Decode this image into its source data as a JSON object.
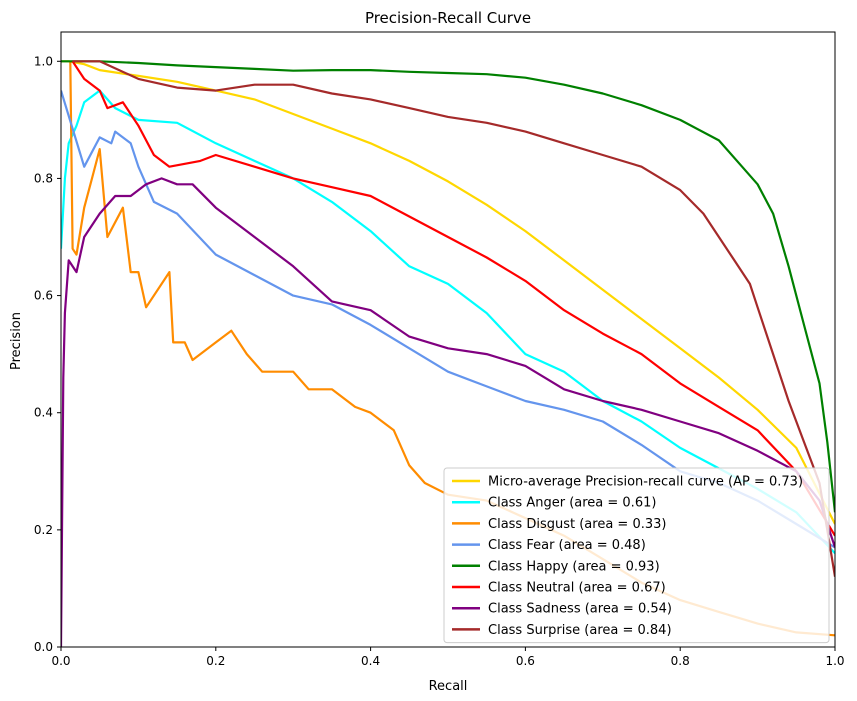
{
  "chart_data": {
    "type": "line",
    "title": "Precision-Recall Curve",
    "xlabel": "Recall",
    "ylabel": "Precision",
    "xlim": [
      0,
      1
    ],
    "ylim": [
      0,
      1.05
    ],
    "x_ticks": [
      "0.0",
      "0.2",
      "0.4",
      "0.6",
      "0.8",
      "1.0"
    ],
    "y_ticks": [
      "0.0",
      "0.2",
      "0.4",
      "0.6",
      "0.8",
      "1.0"
    ],
    "grid": false,
    "legend_position": "lower-right",
    "series": [
      {
        "name": "Micro-average Precision-recall curve (AP = 0.73)",
        "color": "#ffd700",
        "points": [
          [
            0,
            1.0
          ],
          [
            0.01,
            1.0
          ],
          [
            0.03,
            0.995
          ],
          [
            0.05,
            0.985
          ],
          [
            0.1,
            0.975
          ],
          [
            0.15,
            0.965
          ],
          [
            0.2,
            0.95
          ],
          [
            0.25,
            0.935
          ],
          [
            0.3,
            0.91
          ],
          [
            0.35,
            0.885
          ],
          [
            0.4,
            0.86
          ],
          [
            0.45,
            0.83
          ],
          [
            0.5,
            0.795
          ],
          [
            0.55,
            0.755
          ],
          [
            0.6,
            0.71
          ],
          [
            0.65,
            0.66
          ],
          [
            0.7,
            0.61
          ],
          [
            0.75,
            0.56
          ],
          [
            0.8,
            0.51
          ],
          [
            0.85,
            0.46
          ],
          [
            0.9,
            0.405
          ],
          [
            0.95,
            0.34
          ],
          [
            1.0,
            0.21
          ]
        ]
      },
      {
        "name": "Class Anger (area = 0.61)",
        "color": "#00ffff",
        "points": [
          [
            0,
            0.68
          ],
          [
            0.005,
            0.8
          ],
          [
            0.01,
            0.86
          ],
          [
            0.02,
            0.89
          ],
          [
            0.03,
            0.93
          ],
          [
            0.05,
            0.95
          ],
          [
            0.07,
            0.92
          ],
          [
            0.1,
            0.9
          ],
          [
            0.15,
            0.895
          ],
          [
            0.2,
            0.86
          ],
          [
            0.25,
            0.83
          ],
          [
            0.3,
            0.8
          ],
          [
            0.35,
            0.76
          ],
          [
            0.4,
            0.71
          ],
          [
            0.45,
            0.65
          ],
          [
            0.5,
            0.62
          ],
          [
            0.55,
            0.57
          ],
          [
            0.6,
            0.5
          ],
          [
            0.65,
            0.47
          ],
          [
            0.7,
            0.42
          ],
          [
            0.75,
            0.385
          ],
          [
            0.8,
            0.34
          ],
          [
            0.85,
            0.305
          ],
          [
            0.9,
            0.27
          ],
          [
            0.95,
            0.23
          ],
          [
            1.0,
            0.16
          ]
        ]
      },
      {
        "name": "Class Disgust (area = 0.33)",
        "color": "#ff8c00",
        "points": [
          [
            0.012,
            1.0
          ],
          [
            0.015,
            0.68
          ],
          [
            0.02,
            0.67
          ],
          [
            0.03,
            0.75
          ],
          [
            0.04,
            0.8
          ],
          [
            0.05,
            0.85
          ],
          [
            0.06,
            0.7
          ],
          [
            0.08,
            0.75
          ],
          [
            0.09,
            0.64
          ],
          [
            0.1,
            0.64
          ],
          [
            0.11,
            0.58
          ],
          [
            0.14,
            0.64
          ],
          [
            0.145,
            0.52
          ],
          [
            0.16,
            0.52
          ],
          [
            0.17,
            0.49
          ],
          [
            0.2,
            0.52
          ],
          [
            0.22,
            0.54
          ],
          [
            0.24,
            0.5
          ],
          [
            0.26,
            0.47
          ],
          [
            0.3,
            0.47
          ],
          [
            0.32,
            0.44
          ],
          [
            0.35,
            0.44
          ],
          [
            0.38,
            0.41
          ],
          [
            0.4,
            0.4
          ],
          [
            0.43,
            0.37
          ],
          [
            0.45,
            0.31
          ],
          [
            0.47,
            0.28
          ],
          [
            0.5,
            0.26
          ],
          [
            0.55,
            0.25
          ],
          [
            0.6,
            0.22
          ],
          [
            0.65,
            0.19
          ],
          [
            0.7,
            0.15
          ],
          [
            0.75,
            0.11
          ],
          [
            0.8,
            0.08
          ],
          [
            0.85,
            0.06
          ],
          [
            0.9,
            0.04
          ],
          [
            0.95,
            0.025
          ],
          [
            1.0,
            0.02
          ]
        ]
      },
      {
        "name": "Class Fear (area = 0.48)",
        "color": "#6495ed",
        "points": [
          [
            0,
            0.95
          ],
          [
            0.03,
            0.82
          ],
          [
            0.05,
            0.87
          ],
          [
            0.065,
            0.86
          ],
          [
            0.07,
            0.88
          ],
          [
            0.09,
            0.86
          ],
          [
            0.1,
            0.82
          ],
          [
            0.12,
            0.76
          ],
          [
            0.15,
            0.74
          ],
          [
            0.2,
            0.67
          ],
          [
            0.25,
            0.635
          ],
          [
            0.3,
            0.6
          ],
          [
            0.35,
            0.585
          ],
          [
            0.4,
            0.55
          ],
          [
            0.45,
            0.51
          ],
          [
            0.5,
            0.47
          ],
          [
            0.55,
            0.445
          ],
          [
            0.6,
            0.42
          ],
          [
            0.65,
            0.405
          ],
          [
            0.7,
            0.385
          ],
          [
            0.75,
            0.345
          ],
          [
            0.8,
            0.3
          ],
          [
            0.85,
            0.28
          ],
          [
            0.9,
            0.25
          ],
          [
            0.95,
            0.21
          ],
          [
            1.0,
            0.17
          ]
        ]
      },
      {
        "name": "Class Happy (area = 0.93)",
        "color": "#008000",
        "points": [
          [
            0,
            1.0
          ],
          [
            0.05,
            1.0
          ],
          [
            0.1,
            0.997
          ],
          [
            0.15,
            0.993
          ],
          [
            0.2,
            0.99
          ],
          [
            0.25,
            0.987
          ],
          [
            0.3,
            0.984
          ],
          [
            0.35,
            0.985
          ],
          [
            0.4,
            0.985
          ],
          [
            0.45,
            0.982
          ],
          [
            0.5,
            0.98
          ],
          [
            0.55,
            0.978
          ],
          [
            0.6,
            0.972
          ],
          [
            0.65,
            0.96
          ],
          [
            0.7,
            0.945
          ],
          [
            0.75,
            0.925
          ],
          [
            0.8,
            0.9
          ],
          [
            0.85,
            0.865
          ],
          [
            0.88,
            0.82
          ],
          [
            0.9,
            0.79
          ],
          [
            0.92,
            0.74
          ],
          [
            0.94,
            0.65
          ],
          [
            0.96,
            0.55
          ],
          [
            0.98,
            0.45
          ],
          [
            0.99,
            0.35
          ],
          [
            1.0,
            0.23
          ]
        ]
      },
      {
        "name": "Class Neutral (area = 0.67)",
        "color": "#ff0000",
        "points": [
          [
            0.015,
            1.0
          ],
          [
            0.03,
            0.97
          ],
          [
            0.05,
            0.95
          ],
          [
            0.06,
            0.92
          ],
          [
            0.08,
            0.93
          ],
          [
            0.1,
            0.89
          ],
          [
            0.12,
            0.84
          ],
          [
            0.14,
            0.82
          ],
          [
            0.18,
            0.83
          ],
          [
            0.2,
            0.84
          ],
          [
            0.25,
            0.82
          ],
          [
            0.3,
            0.8
          ],
          [
            0.35,
            0.785
          ],
          [
            0.4,
            0.77
          ],
          [
            0.45,
            0.735
          ],
          [
            0.5,
            0.7
          ],
          [
            0.55,
            0.665
          ],
          [
            0.6,
            0.625
          ],
          [
            0.65,
            0.575
          ],
          [
            0.7,
            0.535
          ],
          [
            0.75,
            0.5
          ],
          [
            0.8,
            0.45
          ],
          [
            0.85,
            0.41
          ],
          [
            0.9,
            0.37
          ],
          [
            0.95,
            0.3
          ],
          [
            1.0,
            0.19
          ]
        ]
      },
      {
        "name": "Class Sadness (area = 0.54)",
        "color": "#800080",
        "points": [
          [
            0,
            0.0
          ],
          [
            0.003,
            0.46
          ],
          [
            0.005,
            0.57
          ],
          [
            0.01,
            0.66
          ],
          [
            0.02,
            0.64
          ],
          [
            0.03,
            0.7
          ],
          [
            0.05,
            0.74
          ],
          [
            0.07,
            0.77
          ],
          [
            0.09,
            0.77
          ],
          [
            0.11,
            0.79
          ],
          [
            0.13,
            0.8
          ],
          [
            0.15,
            0.79
          ],
          [
            0.17,
            0.79
          ],
          [
            0.2,
            0.75
          ],
          [
            0.25,
            0.7
          ],
          [
            0.3,
            0.65
          ],
          [
            0.35,
            0.59
          ],
          [
            0.4,
            0.575
          ],
          [
            0.45,
            0.53
          ],
          [
            0.5,
            0.51
          ],
          [
            0.55,
            0.5
          ],
          [
            0.6,
            0.48
          ],
          [
            0.65,
            0.44
          ],
          [
            0.7,
            0.42
          ],
          [
            0.75,
            0.405
          ],
          [
            0.8,
            0.385
          ],
          [
            0.85,
            0.365
          ],
          [
            0.9,
            0.335
          ],
          [
            0.95,
            0.3
          ],
          [
            0.98,
            0.25
          ],
          [
            1.0,
            0.17
          ]
        ]
      },
      {
        "name": "Class Surprise (area = 0.84)",
        "color": "#a52a2a",
        "points": [
          [
            0.015,
            1.0
          ],
          [
            0.05,
            1.0
          ],
          [
            0.1,
            0.97
          ],
          [
            0.15,
            0.955
          ],
          [
            0.2,
            0.95
          ],
          [
            0.25,
            0.96
          ],
          [
            0.3,
            0.96
          ],
          [
            0.35,
            0.945
          ],
          [
            0.4,
            0.935
          ],
          [
            0.45,
            0.92
          ],
          [
            0.5,
            0.905
          ],
          [
            0.55,
            0.895
          ],
          [
            0.6,
            0.88
          ],
          [
            0.65,
            0.86
          ],
          [
            0.7,
            0.84
          ],
          [
            0.75,
            0.82
          ],
          [
            0.8,
            0.78
          ],
          [
            0.83,
            0.74
          ],
          [
            0.85,
            0.7
          ],
          [
            0.87,
            0.66
          ],
          [
            0.89,
            0.62
          ],
          [
            0.9,
            0.58
          ],
          [
            0.92,
            0.5
          ],
          [
            0.94,
            0.42
          ],
          [
            0.96,
            0.35
          ],
          [
            0.98,
            0.28
          ],
          [
            1.0,
            0.12
          ]
        ]
      }
    ]
  }
}
